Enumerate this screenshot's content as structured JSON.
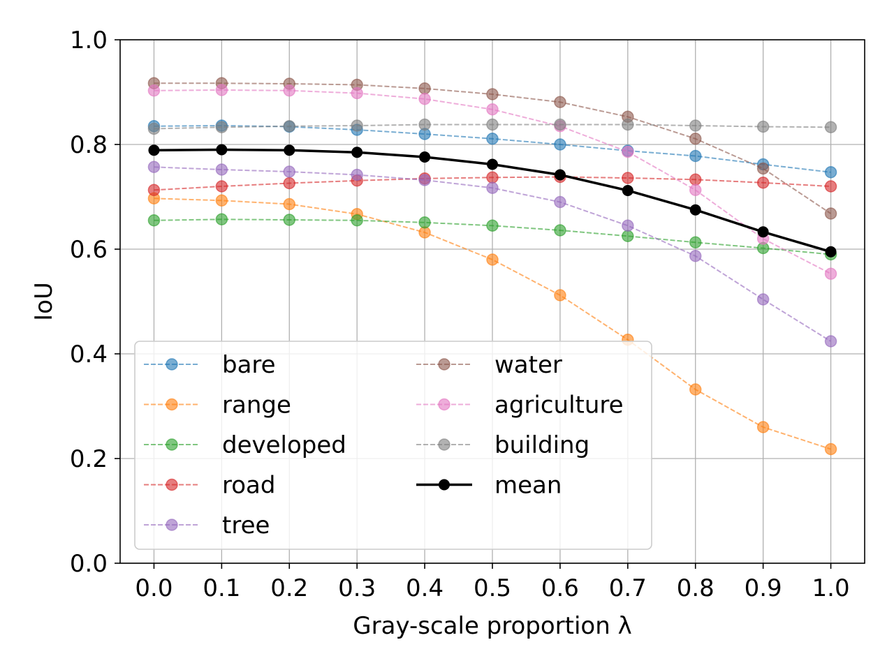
{
  "chart_data": {
    "type": "line",
    "xlabel": "Gray-scale proportion λ",
    "ylabel": "IoU",
    "xlim": [
      -0.05,
      1.05
    ],
    "ylim": [
      0.0,
      1.0
    ],
    "xticks": [
      "0.0",
      "0.1",
      "0.2",
      "0.3",
      "0.4",
      "0.5",
      "0.6",
      "0.7",
      "0.8",
      "0.9",
      "1.0"
    ],
    "yticks": [
      "0.0",
      "0.2",
      "0.4",
      "0.6",
      "0.8",
      "1.0"
    ],
    "grid": true,
    "legend_position": "lower-left",
    "x": [
      0.0,
      0.1,
      0.2,
      0.3,
      0.4,
      0.5,
      0.6,
      0.7,
      0.8,
      0.9,
      1.0
    ],
    "series": [
      {
        "name": "bare",
        "color": "#1f77b4",
        "dashed": true,
        "values": [
          0.835,
          0.836,
          0.834,
          0.828,
          0.82,
          0.811,
          0.8,
          0.788,
          0.778,
          0.762,
          0.747
        ]
      },
      {
        "name": "range",
        "color": "#ff7f0e",
        "dashed": true,
        "values": [
          0.697,
          0.693,
          0.686,
          0.667,
          0.632,
          0.58,
          0.512,
          0.427,
          0.332,
          0.26,
          0.218
        ]
      },
      {
        "name": "developed",
        "color": "#2ca02c",
        "dashed": true,
        "values": [
          0.655,
          0.657,
          0.656,
          0.655,
          0.651,
          0.645,
          0.636,
          0.625,
          0.613,
          0.602,
          0.59
        ]
      },
      {
        "name": "road",
        "color": "#d62728",
        "dashed": true,
        "values": [
          0.713,
          0.72,
          0.726,
          0.731,
          0.735,
          0.737,
          0.738,
          0.736,
          0.733,
          0.727,
          0.72
        ]
      },
      {
        "name": "tree",
        "color": "#9467bd",
        "dashed": true,
        "values": [
          0.757,
          0.752,
          0.748,
          0.742,
          0.732,
          0.717,
          0.69,
          0.645,
          0.587,
          0.504,
          0.424
        ]
      },
      {
        "name": "water",
        "color": "#8c564b",
        "dashed": true,
        "values": [
          0.917,
          0.917,
          0.916,
          0.914,
          0.907,
          0.896,
          0.881,
          0.853,
          0.811,
          0.754,
          0.668
        ]
      },
      {
        "name": "agriculture",
        "color": "#e377c2",
        "dashed": true,
        "values": [
          0.903,
          0.904,
          0.903,
          0.898,
          0.887,
          0.867,
          0.835,
          0.786,
          0.713,
          0.62,
          0.553
        ]
      },
      {
        "name": "building",
        "color": "#7f7f7f",
        "dashed": true,
        "values": [
          0.83,
          0.833,
          0.835,
          0.836,
          0.838,
          0.838,
          0.838,
          0.838,
          0.836,
          0.834,
          0.833
        ]
      },
      {
        "name": "mean",
        "color": "#000000",
        "dashed": false,
        "values": [
          0.789,
          0.79,
          0.789,
          0.785,
          0.776,
          0.762,
          0.742,
          0.712,
          0.675,
          0.633,
          0.595
        ]
      }
    ]
  }
}
